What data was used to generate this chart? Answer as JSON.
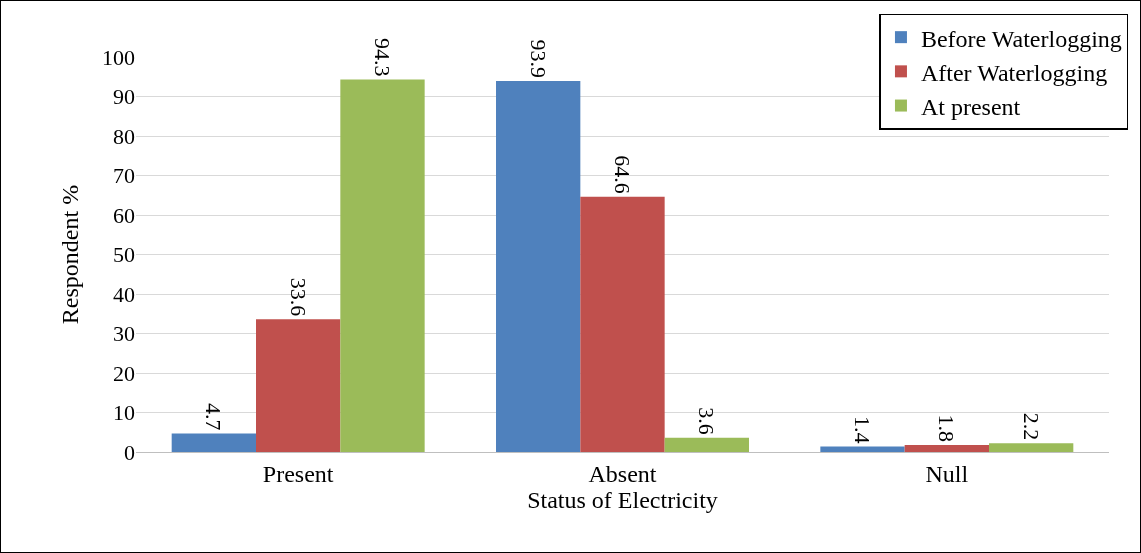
{
  "chart_data": {
    "type": "bar",
    "xlabel": "Status of Electricity",
    "ylabel": "Respondent %",
    "categories": [
      "Present",
      "Absent",
      "Null"
    ],
    "series": [
      {
        "name": "Before Waterlogging",
        "color": "#4f81bd",
        "values": [
          4.7,
          93.9,
          1.4
        ]
      },
      {
        "name": "After Waterlogging",
        "color": "#c0504d",
        "values": [
          33.6,
          64.6,
          1.8
        ]
      },
      {
        "name": "At present",
        "color": "#9bbb59",
        "values": [
          94.3,
          3.6,
          2.2
        ]
      }
    ],
    "ylim": [
      0,
      100
    ],
    "yticks": [
      0,
      10,
      20,
      30,
      40,
      50,
      60,
      70,
      80,
      90,
      100
    ],
    "grid": "y",
    "legend": "top right",
    "data_labels": true
  }
}
